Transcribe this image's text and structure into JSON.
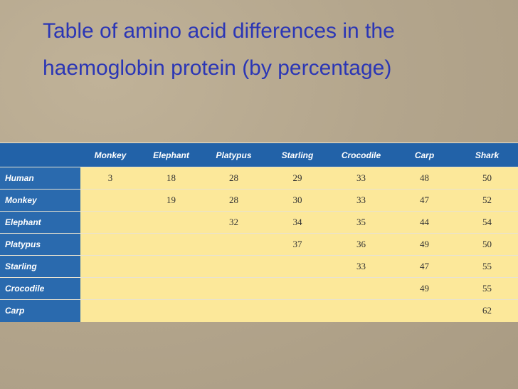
{
  "title": "Table of amino acid differences in the haemoglobin protein (by percentage)",
  "table": {
    "columns": [
      "Monkey",
      "Elephant",
      "Platypus",
      "Starling",
      "Crocodile",
      "Carp",
      "Shark"
    ],
    "rows": [
      {
        "label": "Human",
        "values": [
          3,
          18,
          28,
          29,
          33,
          48,
          50
        ]
      },
      {
        "label": "Monkey",
        "values": [
          null,
          19,
          28,
          30,
          33,
          47,
          52
        ]
      },
      {
        "label": "Elephant",
        "values": [
          null,
          null,
          32,
          34,
          35,
          44,
          54
        ]
      },
      {
        "label": "Platypus",
        "values": [
          null,
          null,
          null,
          37,
          36,
          49,
          50
        ]
      },
      {
        "label": "Starling",
        "values": [
          null,
          null,
          null,
          null,
          33,
          47,
          55
        ]
      },
      {
        "label": "Crocodile",
        "values": [
          null,
          null,
          null,
          null,
          null,
          49,
          55
        ]
      },
      {
        "label": "Carp",
        "values": [
          null,
          null,
          null,
          null,
          null,
          null,
          62
        ]
      }
    ]
  }
}
